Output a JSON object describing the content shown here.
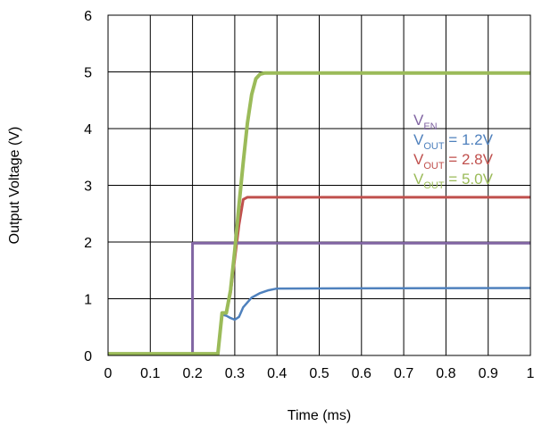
{
  "chart_data": {
    "type": "line",
    "xlabel": "Time (ms)",
    "ylabel": "Output Voltage (V)",
    "xlim": [
      0,
      1
    ],
    "ylim": [
      0,
      6
    ],
    "x_ticks": [
      "0",
      "0.1",
      "0.2",
      "0.3",
      "0.4",
      "0.5",
      "0.6",
      "0.7",
      "0.8",
      "0.9",
      "1"
    ],
    "y_ticks": [
      "0",
      "1",
      "2",
      "3",
      "4",
      "5",
      "6"
    ],
    "grid": true,
    "legend_position": "right",
    "series": [
      {
        "name": "VEN",
        "legend": {
          "main": "V",
          "sub": "EN",
          "suffix": ""
        },
        "color": "#8064a2",
        "x": [
          0,
          0.2,
          0.2,
          1
        ],
        "y": [
          0.03,
          0.03,
          1.98,
          1.98
        ]
      },
      {
        "name": "VOUT = 1.2V",
        "legend": {
          "main": "V",
          "sub": "OUT",
          "suffix": " = 1.2V"
        },
        "color": "#4f81bd",
        "x": [
          0,
          0.26,
          0.27,
          0.28,
          0.29,
          0.3,
          0.31,
          0.32,
          0.34,
          0.36,
          0.38,
          0.4,
          1
        ],
        "y": [
          0.03,
          0.03,
          0.72,
          0.7,
          0.66,
          0.63,
          0.68,
          0.85,
          1.02,
          1.1,
          1.15,
          1.18,
          1.19
        ]
      },
      {
        "name": "VOUT = 2.8V",
        "legend": {
          "main": "V",
          "sub": "OUT",
          "suffix": " = 2.8V"
        },
        "color": "#c0504d",
        "x": [
          0,
          0.26,
          0.27,
          0.28,
          0.29,
          0.3,
          0.31,
          0.32,
          0.33,
          1
        ],
        "y": [
          0.03,
          0.03,
          0.75,
          0.75,
          1.1,
          1.7,
          2.3,
          2.75,
          2.79,
          2.79
        ]
      },
      {
        "name": "VOUT = 5.0V",
        "legend": {
          "main": "V",
          "sub": "OUT",
          "suffix": " = 5.0V"
        },
        "color": "#9bbb59",
        "x": [
          0,
          0.26,
          0.27,
          0.28,
          0.29,
          0.3,
          0.31,
          0.32,
          0.33,
          0.34,
          0.35,
          0.36,
          0.37,
          1
        ],
        "y": [
          0.03,
          0.03,
          0.75,
          0.75,
          1.15,
          1.85,
          2.65,
          3.4,
          4.1,
          4.6,
          4.88,
          4.96,
          4.98,
          4.98
        ]
      }
    ]
  }
}
